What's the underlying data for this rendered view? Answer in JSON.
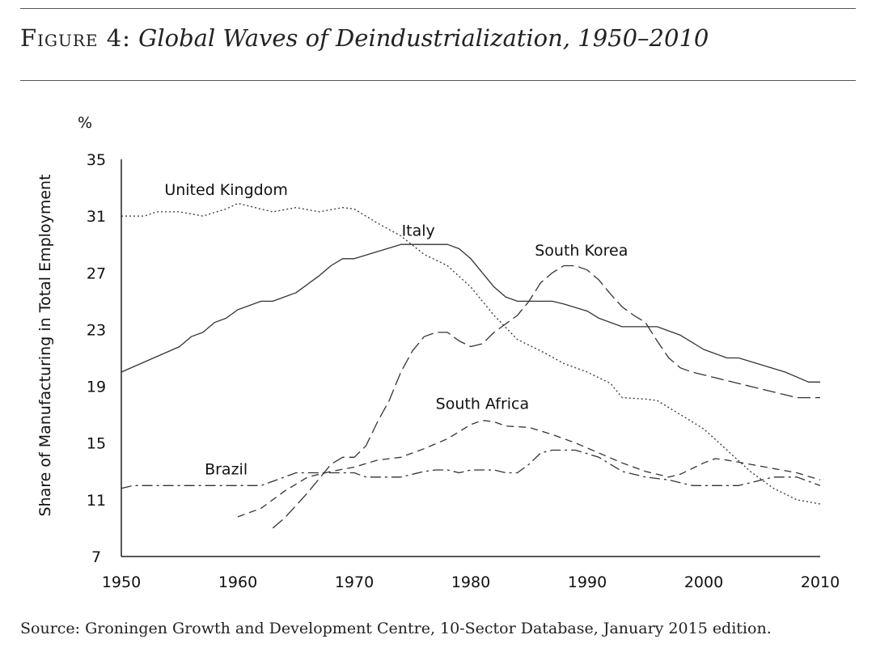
{
  "figure": {
    "label": "Figure 4:",
    "title": "Global Waves of Deindustrialization, 1950–2010",
    "source": "Source: Groningen Growth and Development Centre, 10-Sector Database, January 2015 edition."
  },
  "chart_data": {
    "type": "line",
    "ylabel": "Share of Manufacturing in Total Employment",
    "yunit": "%",
    "xlim": [
      1950,
      2010
    ],
    "ylim": [
      7,
      35
    ],
    "xticks": [
      1950,
      1960,
      1970,
      1980,
      1990,
      2000,
      2010
    ],
    "yticks": [
      7,
      11,
      15,
      19,
      23,
      27,
      31,
      35
    ],
    "grid": false,
    "series": [
      {
        "name": "United Kingdom",
        "style": "dotted",
        "label_pos": [
          1959,
          32.5
        ],
        "points": [
          [
            1950,
            31.0
          ],
          [
            1952,
            31.0
          ],
          [
            1953,
            31.3
          ],
          [
            1955,
            31.3
          ],
          [
            1957,
            31.0
          ],
          [
            1959,
            31.5
          ],
          [
            1960,
            31.9
          ],
          [
            1961,
            31.7
          ],
          [
            1963,
            31.3
          ],
          [
            1965,
            31.6
          ],
          [
            1967,
            31.3
          ],
          [
            1969,
            31.6
          ],
          [
            1970,
            31.5
          ],
          [
            1972,
            30.5
          ],
          [
            1974,
            29.6
          ],
          [
            1976,
            28.3
          ],
          [
            1978,
            27.5
          ],
          [
            1980,
            26.0
          ],
          [
            1982,
            24.0
          ],
          [
            1984,
            22.3
          ],
          [
            1986,
            21.5
          ],
          [
            1988,
            20.6
          ],
          [
            1990,
            20.0
          ],
          [
            1992,
            19.2
          ],
          [
            1993,
            18.2
          ],
          [
            1995,
            18.1
          ],
          [
            1996,
            18.0
          ],
          [
            1998,
            17.0
          ],
          [
            2000,
            16.0
          ],
          [
            2002,
            14.5
          ],
          [
            2004,
            13.0
          ],
          [
            2006,
            11.8
          ],
          [
            2008,
            11.0
          ],
          [
            2010,
            10.7
          ]
        ]
      },
      {
        "name": "Italy",
        "style": "solid",
        "label_pos": [
          1975.5,
          29.6
        ],
        "points": [
          [
            1950,
            20.0
          ],
          [
            1955,
            21.8
          ],
          [
            1956,
            22.5
          ],
          [
            1957,
            22.8
          ],
          [
            1958,
            23.5
          ],
          [
            1959,
            23.8
          ],
          [
            1960,
            24.4
          ],
          [
            1962,
            25.0
          ],
          [
            1963,
            25.0
          ],
          [
            1964,
            25.3
          ],
          [
            1965,
            25.6
          ],
          [
            1967,
            26.8
          ],
          [
            1968,
            27.5
          ],
          [
            1969,
            28.0
          ],
          [
            1970,
            28.0
          ],
          [
            1972,
            28.5
          ],
          [
            1974,
            29.0
          ],
          [
            1976,
            29.0
          ],
          [
            1978,
            29.0
          ],
          [
            1979,
            28.7
          ],
          [
            1980,
            28.0
          ],
          [
            1981,
            27.0
          ],
          [
            1982,
            26.0
          ],
          [
            1983,
            25.3
          ],
          [
            1984,
            25.0
          ],
          [
            1987,
            25.0
          ],
          [
            1988,
            24.8
          ],
          [
            1990,
            24.3
          ],
          [
            1991,
            23.8
          ],
          [
            1993,
            23.2
          ],
          [
            1996,
            23.2
          ],
          [
            1998,
            22.6
          ],
          [
            2000,
            21.6
          ],
          [
            2002,
            21.0
          ],
          [
            2003,
            21.0
          ],
          [
            2005,
            20.5
          ],
          [
            2007,
            20.0
          ],
          [
            2009,
            19.3
          ],
          [
            2010,
            19.3
          ]
        ]
      },
      {
        "name": "South Korea",
        "style": "long-dash",
        "label_pos": [
          1989.5,
          28.2
        ],
        "points": [
          [
            1963,
            9.0
          ],
          [
            1964,
            9.7
          ],
          [
            1966,
            11.5
          ],
          [
            1968,
            13.5
          ],
          [
            1969,
            14.0
          ],
          [
            1970,
            14.0
          ],
          [
            1971,
            14.8
          ],
          [
            1972,
            16.5
          ],
          [
            1973,
            18.0
          ],
          [
            1974,
            20.0
          ],
          [
            1975,
            21.5
          ],
          [
            1976,
            22.5
          ],
          [
            1977,
            22.8
          ],
          [
            1978,
            22.8
          ],
          [
            1979,
            22.2
          ],
          [
            1980,
            21.8
          ],
          [
            1981,
            22.0
          ],
          [
            1982,
            22.8
          ],
          [
            1983,
            23.4
          ],
          [
            1984,
            24.0
          ],
          [
            1985,
            25.0
          ],
          [
            1986,
            26.3
          ],
          [
            1987,
            27.0
          ],
          [
            1988,
            27.5
          ],
          [
            1989,
            27.5
          ],
          [
            1990,
            27.2
          ],
          [
            1991,
            26.5
          ],
          [
            1992,
            25.5
          ],
          [
            1993,
            24.6
          ],
          [
            1994,
            24.0
          ],
          [
            1995,
            23.5
          ],
          [
            1996,
            22.2
          ],
          [
            1997,
            21.0
          ],
          [
            1998,
            20.3
          ],
          [
            1999,
            20.0
          ],
          [
            2000,
            19.8
          ],
          [
            2001,
            19.6
          ],
          [
            2002,
            19.4
          ],
          [
            2003,
            19.2
          ],
          [
            2004,
            19.0
          ],
          [
            2005,
            18.8
          ],
          [
            2006,
            18.6
          ],
          [
            2007,
            18.4
          ],
          [
            2008,
            18.2
          ],
          [
            2010,
            18.2
          ]
        ]
      },
      {
        "name": "South Africa",
        "style": "dash",
        "label_pos": [
          1981,
          17.4
        ],
        "points": [
          [
            1960,
            9.8
          ],
          [
            1962,
            10.4
          ],
          [
            1964,
            11.6
          ],
          [
            1966,
            12.6
          ],
          [
            1968,
            13.0
          ],
          [
            1970,
            13.3
          ],
          [
            1972,
            13.8
          ],
          [
            1974,
            14.0
          ],
          [
            1976,
            14.6
          ],
          [
            1978,
            15.3
          ],
          [
            1980,
            16.3
          ],
          [
            1981,
            16.6
          ],
          [
            1982,
            16.5
          ],
          [
            1983,
            16.2
          ],
          [
            1985,
            16.1
          ],
          [
            1987,
            15.6
          ],
          [
            1989,
            15.0
          ],
          [
            1991,
            14.3
          ],
          [
            1993,
            13.6
          ],
          [
            1995,
            13.0
          ],
          [
            1997,
            12.6
          ],
          [
            1998,
            12.8
          ],
          [
            2000,
            13.6
          ],
          [
            2001,
            13.9
          ],
          [
            2002,
            13.8
          ],
          [
            2004,
            13.5
          ],
          [
            2006,
            13.2
          ],
          [
            2008,
            12.9
          ],
          [
            2010,
            12.4
          ]
        ]
      },
      {
        "name": "Brazil",
        "style": "dash-dot",
        "label_pos": [
          1959,
          12.8
        ],
        "points": [
          [
            1950,
            11.8
          ],
          [
            1951,
            12.0
          ],
          [
            1955,
            12.0
          ],
          [
            1958,
            12.0
          ],
          [
            1962,
            12.0
          ],
          [
            1964,
            12.6
          ],
          [
            1965,
            12.9
          ],
          [
            1968,
            12.9
          ],
          [
            1970,
            12.9
          ],
          [
            1971,
            12.6
          ],
          [
            1974,
            12.6
          ],
          [
            1976,
            13.0
          ],
          [
            1977,
            13.1
          ],
          [
            1978,
            13.1
          ],
          [
            1979,
            12.9
          ],
          [
            1980,
            13.1
          ],
          [
            1982,
            13.1
          ],
          [
            1983,
            12.9
          ],
          [
            1984,
            12.9
          ],
          [
            1985,
            13.5
          ],
          [
            1986,
            14.3
          ],
          [
            1987,
            14.5
          ],
          [
            1989,
            14.5
          ],
          [
            1991,
            14.0
          ],
          [
            1993,
            13.0
          ],
          [
            1995,
            12.6
          ],
          [
            1997,
            12.4
          ],
          [
            1999,
            12.0
          ],
          [
            2003,
            12.0
          ],
          [
            2004,
            12.2
          ],
          [
            2006,
            12.6
          ],
          [
            2008,
            12.6
          ],
          [
            2010,
            12.0
          ]
        ]
      }
    ]
  }
}
